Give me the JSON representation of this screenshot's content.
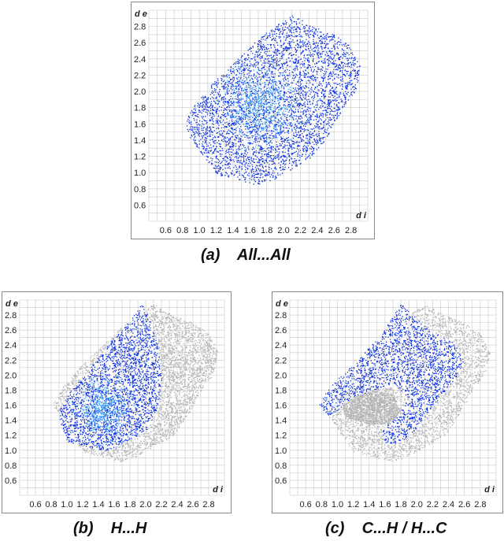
{
  "colors": {
    "highlight": "#0a2fe0",
    "highlight_core": "#3fa8ff",
    "background_points": "#b4b4b4",
    "grid": "#c8c8c8"
  },
  "chart_data": [
    {
      "type": "scatter",
      "panel": "a",
      "caption": "(a)    All...All",
      "xlabel": "d i",
      "ylabel": "d e",
      "xlim": [
        0.4,
        3.0
      ],
      "ylim": [
        0.4,
        3.0
      ],
      "x_ticks": [
        "0.6",
        "0.8",
        "1.0",
        "1.2",
        "1.4",
        "1.6",
        "1.8",
        "2.0",
        "2.2",
        "2.4",
        "2.6",
        "2.8"
      ],
      "y_ticks": [
        "0.6",
        "0.8",
        "1.0",
        "1.2",
        "1.4",
        "1.6",
        "1.8",
        "2.0",
        "2.2",
        "2.4",
        "2.6",
        "2.8"
      ],
      "grid": true,
      "series": [
        {
          "color": "#0a2fe0",
          "region": {
            "di_range": [
              0.8,
              2.9
            ],
            "de_range": [
              0.85,
              2.95
            ],
            "center": [
              1.7,
              1.8
            ]
          }
        }
      ]
    },
    {
      "type": "scatter",
      "panel": "b",
      "caption": "(b)    H...H",
      "xlabel": "d i",
      "ylabel": "d e",
      "xlim": [
        0.4,
        3.0
      ],
      "ylim": [
        0.4,
        3.0
      ],
      "x_ticks": [
        "0.6",
        "0.8",
        "1.0",
        "1.2",
        "1.4",
        "1.6",
        "1.8",
        "2.0",
        "2.2",
        "2.4",
        "2.6",
        "2.8"
      ],
      "y_ticks": [
        "0.6",
        "0.8",
        "1.0",
        "1.2",
        "1.4",
        "1.6",
        "1.8",
        "2.0",
        "2.2",
        "2.4",
        "2.6",
        "2.8"
      ],
      "grid": true,
      "series": [
        {
          "color": "#b4b4b4",
          "region": {
            "di_range": [
              0.8,
              2.9
            ],
            "de_range": [
              0.85,
              2.95
            ]
          }
        },
        {
          "color": "#0a2fe0",
          "region": {
            "di_range": [
              1.0,
              2.2
            ],
            "de_range": [
              1.1,
              2.95
            ],
            "center": [
              1.5,
              1.75
            ]
          }
        }
      ]
    },
    {
      "type": "scatter",
      "panel": "c",
      "caption": "(c)    C...H / H...C",
      "xlabel": "d i",
      "ylabel": "d e",
      "xlim": [
        0.4,
        3.0
      ],
      "ylim": [
        0.4,
        3.0
      ],
      "x_ticks": [
        "0.6",
        "0.8",
        "1.0",
        "1.2",
        "1.4",
        "1.6",
        "1.8",
        "2.0",
        "2.2",
        "2.4",
        "2.6",
        "2.8"
      ],
      "y_ticks": [
        "0.6",
        "0.8",
        "1.0",
        "1.2",
        "1.4",
        "1.6",
        "1.8",
        "2.0",
        "2.2",
        "2.4",
        "2.6",
        "2.8"
      ],
      "grid": true,
      "series": [
        {
          "color": "#b4b4b4",
          "region": {
            "di_range": [
              0.8,
              2.9
            ],
            "de_range": [
              0.85,
              2.95
            ]
          }
        },
        {
          "color": "#0a2fe0",
          "region": {
            "di_range": [
              0.7,
              2.6
            ],
            "de_range": [
              0.8,
              2.95
            ],
            "center": [
              1.8,
              2.0
            ]
          }
        }
      ]
    }
  ]
}
